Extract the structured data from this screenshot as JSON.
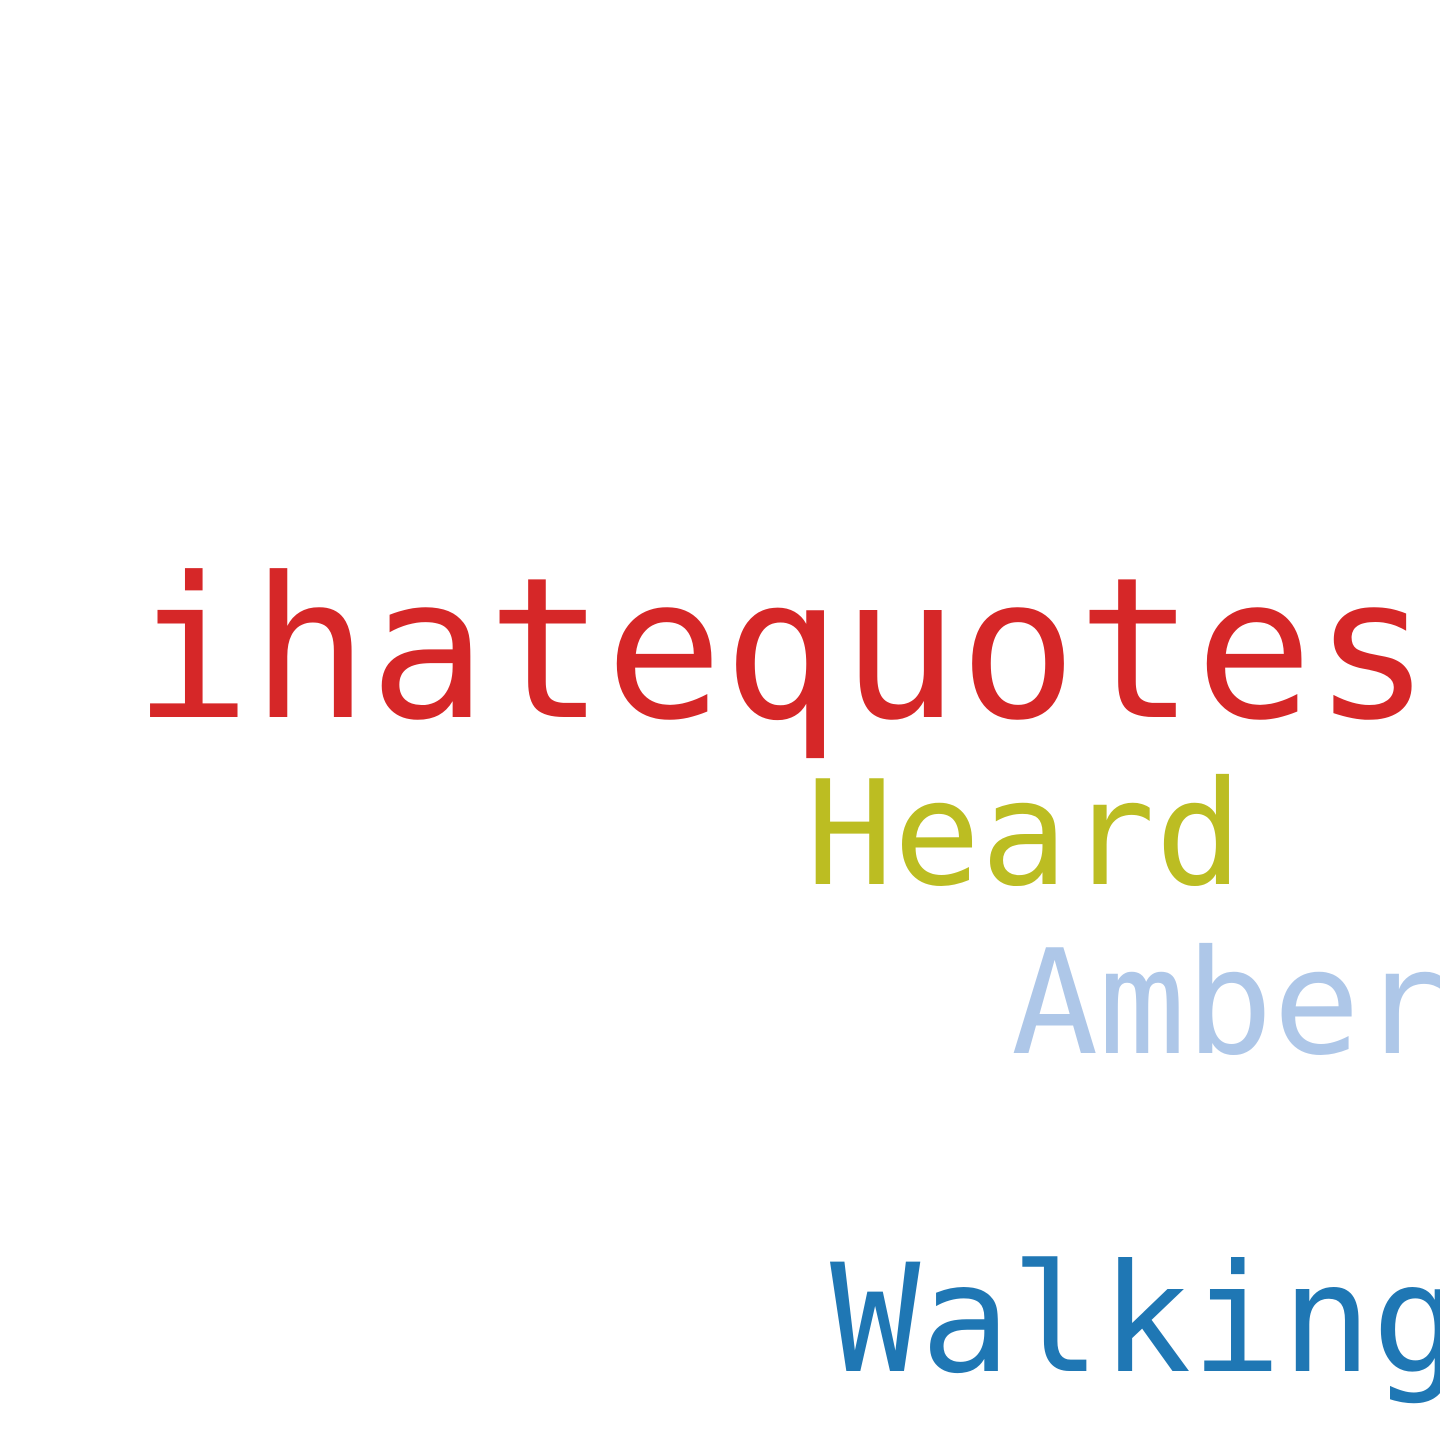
{
  "words": [
    {
      "text": "ihatequotes",
      "color": "#d62728"
    },
    {
      "text": "Heard",
      "color": "#bcbd22"
    },
    {
      "text": "Amber",
      "color": "#aec7e8"
    },
    {
      "text": "Walking",
      "color": "#1f77b4"
    }
  ]
}
